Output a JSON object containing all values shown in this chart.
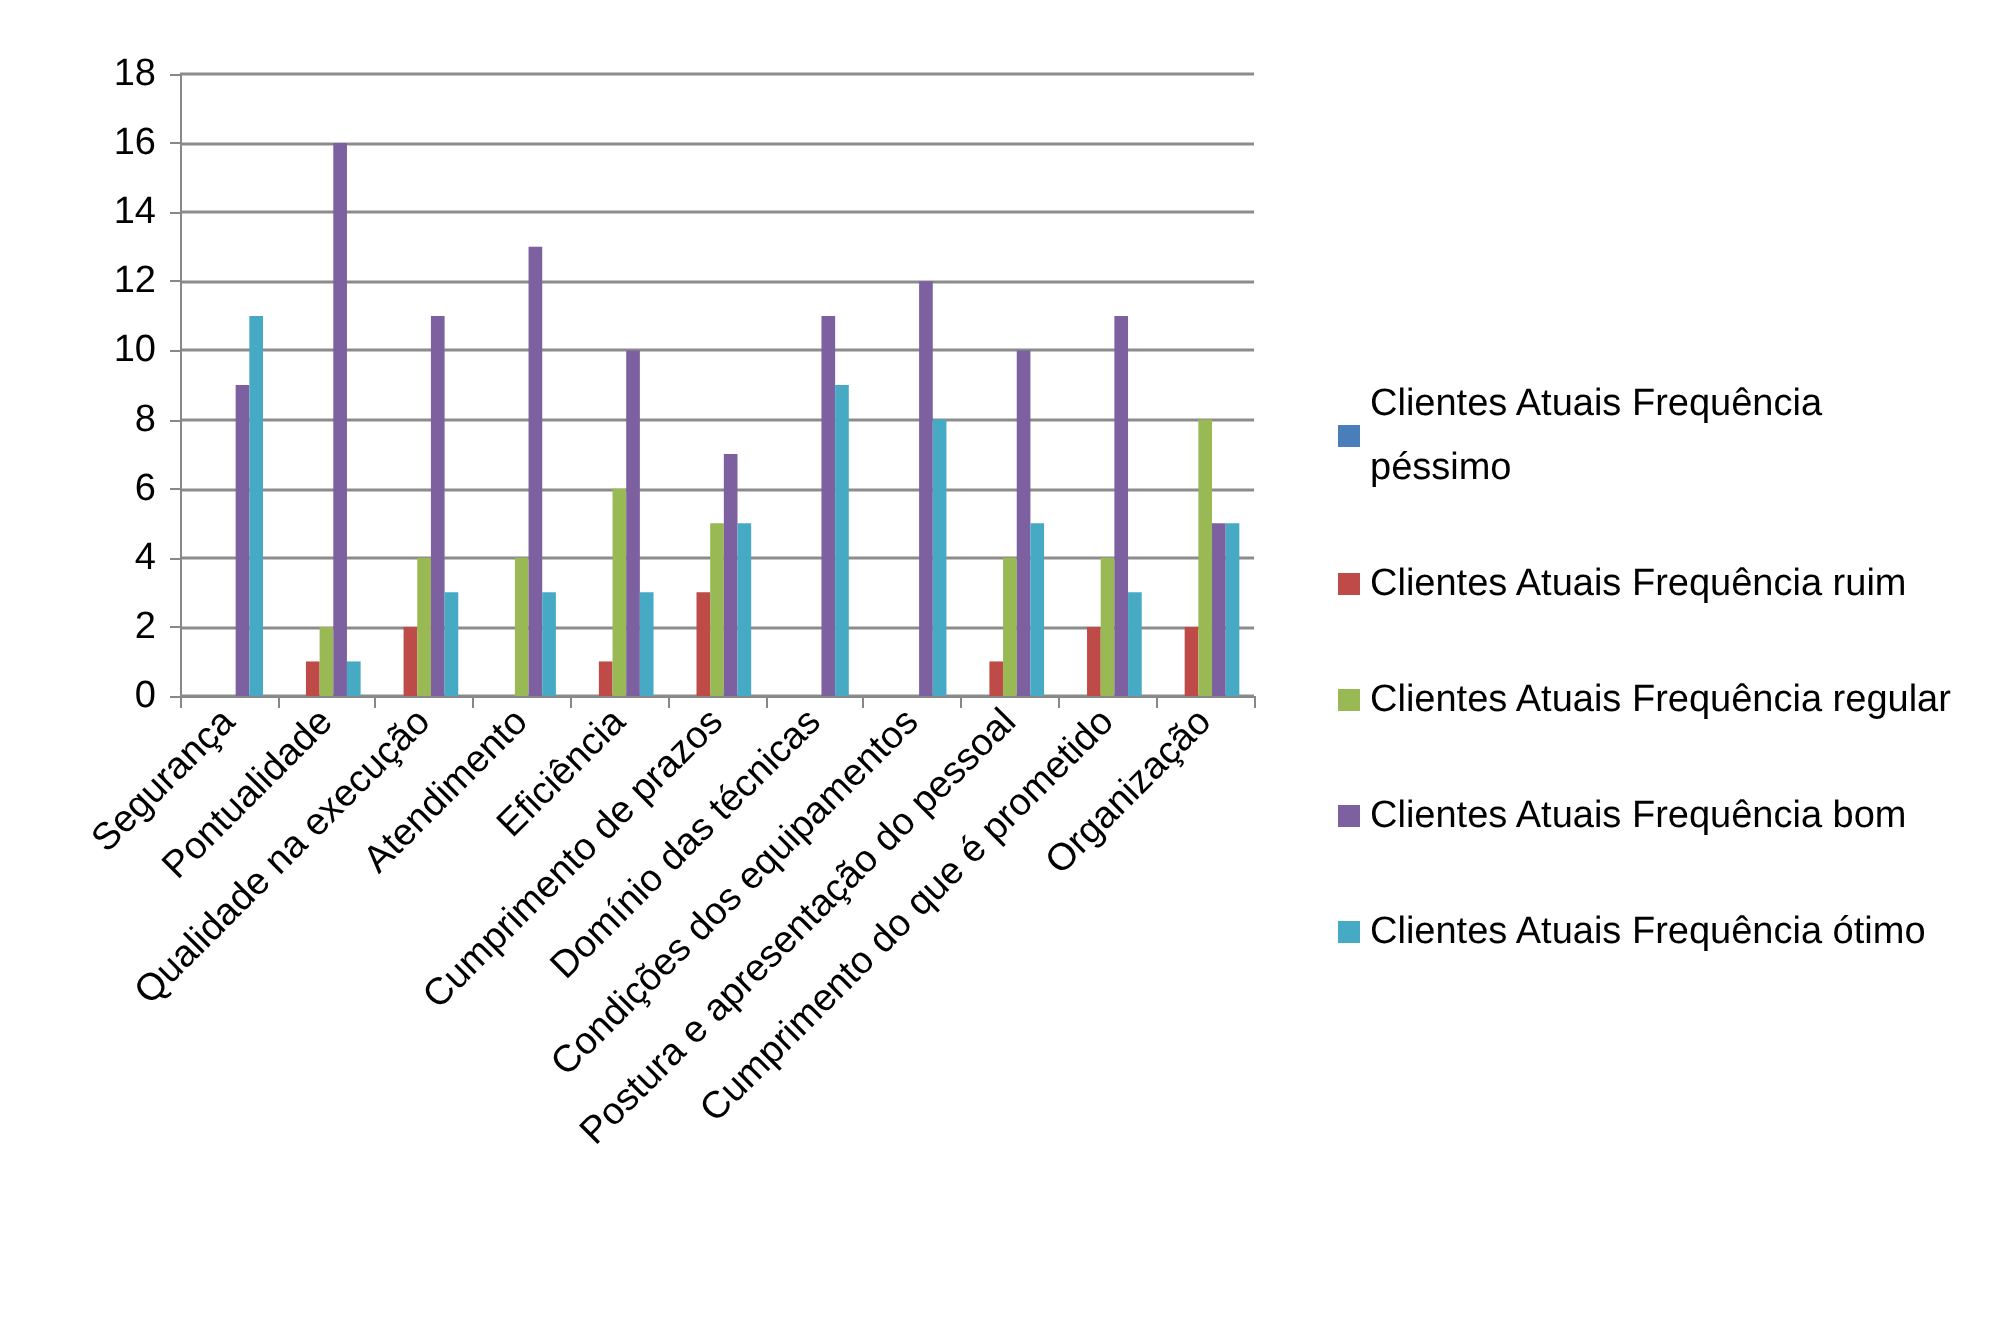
{
  "chart_data": {
    "type": "bar",
    "categories": [
      "Segurança",
      "Pontualidade",
      "Qualidade na execução",
      "Atendimento",
      "Eficiência",
      "Cumprimento de prazos",
      "Domínio das técnicas",
      "Condições dos equipamentos",
      "Postura e apresentação do pessoal",
      "Cumprimento do que é prometido",
      "Organização"
    ],
    "series": [
      {
        "name": "Clientes Atuais Frequência péssimo",
        "color": "#4a7ebb",
        "values": [
          0,
          0,
          0,
          0,
          0,
          0,
          0,
          0,
          0,
          0,
          0
        ]
      },
      {
        "name": "Clientes Atuais Frequência ruim",
        "color": "#be4b48",
        "values": [
          0,
          1,
          2,
          0,
          1,
          3,
          0,
          0,
          1,
          2,
          2
        ]
      },
      {
        "name": "Clientes Atuais Frequência regular",
        "color": "#98b954",
        "values": [
          0,
          2,
          4,
          4,
          6,
          5,
          0,
          0,
          4,
          4,
          8
        ]
      },
      {
        "name": "Clientes Atuais Frequência bom",
        "color": "#7d60a0",
        "values": [
          9,
          16,
          11,
          13,
          10,
          7,
          11,
          12,
          10,
          11,
          5
        ]
      },
      {
        "name": "Clientes Atuais Frequência ótimo",
        "color": "#46aac5",
        "values": [
          11,
          1,
          3,
          3,
          3,
          5,
          9,
          8,
          5,
          3,
          5
        ]
      }
    ],
    "ylim": [
      0,
      18
    ],
    "yticks": [
      0,
      2,
      4,
      6,
      8,
      10,
      12,
      14,
      16,
      18
    ],
    "grid": "y",
    "legend": "right"
  }
}
